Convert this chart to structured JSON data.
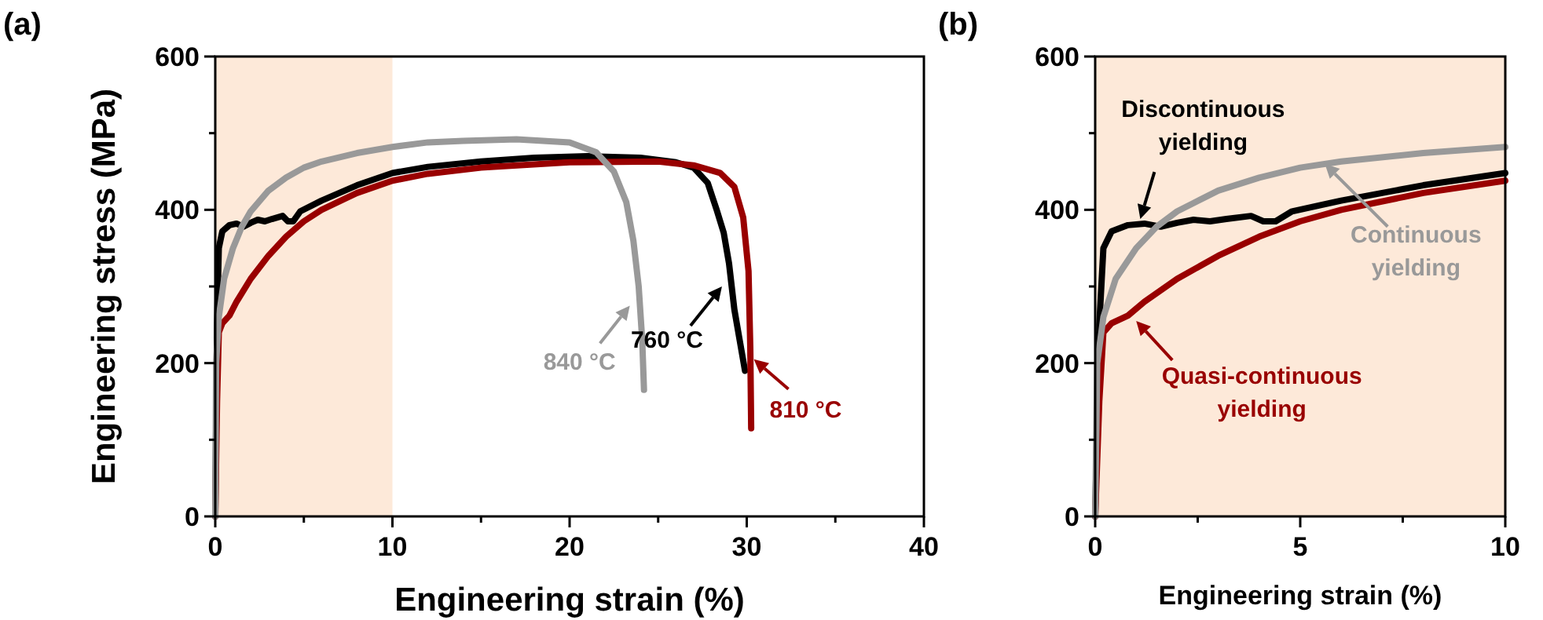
{
  "chart_data": [
    {
      "type": "line",
      "title": "(a)",
      "xlabel": "Engineering strain (%)",
      "ylabel": "Engineering stress (MPa)",
      "xlim": [
        0,
        40
      ],
      "ylim": [
        0,
        600
      ],
      "xticks": [
        0,
        {
          "value": 5,
          "label": null
        },
        10,
        {
          "value": 15,
          "label": null
        },
        20,
        {
          "value": 25,
          "label": null
        },
        30,
        {
          "value": 35,
          "label": null
        },
        40
      ],
      "yticks": [
        0,
        {
          "value": 100,
          "label": null
        },
        200,
        {
          "value": 300,
          "label": null
        },
        400,
        {
          "value": 500,
          "label": null
        },
        600
      ],
      "bands": [
        {
          "axis": "x",
          "from": 0,
          "to": 10,
          "color": "#fde9d9"
        }
      ],
      "grid": false,
      "marker": "none",
      "line_style": "solid",
      "series": [
        {
          "color": "#000000",
          "x": [
            0,
            0.1,
            0.2,
            0.4,
            0.8,
            1.2,
            1.6,
            2,
            2.4,
            2.8,
            3.2,
            3.8,
            4.1,
            4.4,
            4.8,
            6,
            8,
            10,
            12,
            15,
            18,
            21,
            24,
            26,
            27,
            27.8,
            28.3,
            28.7,
            29,
            29.3,
            29.6,
            29.9
          ],
          "values": [
            0,
            250,
            350,
            372,
            380,
            382,
            378,
            383,
            387,
            385,
            388,
            392,
            385,
            385,
            398,
            412,
            432,
            448,
            456,
            463,
            468,
            470,
            468,
            462,
            455,
            435,
            400,
            370,
            330,
            270,
            230,
            190
          ]
        },
        {
          "color": "#990000",
          "x": [
            0,
            0.1,
            0.2,
            0.4,
            0.8,
            1.2,
            2,
            3,
            4,
            5,
            6,
            8,
            10,
            12,
            15,
            20,
            25,
            27,
            28.5,
            29.3,
            29.8,
            30.1,
            30.2,
            30.25
          ],
          "values": [
            0,
            150,
            240,
            252,
            262,
            280,
            310,
            340,
            365,
            385,
            400,
            422,
            438,
            447,
            455,
            462,
            463,
            458,
            448,
            430,
            390,
            320,
            220,
            115
          ]
        },
        {
          "color": "#999999",
          "x": [
            0,
            0.05,
            0.2,
            0.5,
            1,
            1.5,
            2,
            3,
            4,
            5,
            6,
            8,
            10,
            12,
            14,
            17,
            20,
            21.5,
            22.5,
            23.2,
            23.6,
            23.9,
            24.1,
            24.2
          ],
          "values": [
            0,
            200,
            260,
            310,
            350,
            378,
            398,
            425,
            442,
            455,
            463,
            474,
            482,
            488,
            490,
            492,
            488,
            475,
            450,
            410,
            360,
            300,
            230,
            165
          ]
        }
      ],
      "annotations": [
        {
          "text": "760 °C",
          "x": 28.6,
          "y": 300
        },
        {
          "text": "810 °C",
          "x": 30.4,
          "y": 205
        },
        {
          "text": "840 °C",
          "x": 23.4,
          "y": 275
        }
      ]
    },
    {
      "type": "line",
      "title": "(b)",
      "xlabel": "Engineering strain (%)",
      "xlim": [
        0,
        10
      ],
      "ylim": [
        0,
        600
      ],
      "xticks": [
        0,
        {
          "value": 2.5,
          "label": null
        },
        5,
        {
          "value": 7.5,
          "label": null
        },
        10
      ],
      "yticks": [
        0,
        {
          "value": 100,
          "label": null
        },
        200,
        {
          "value": 300,
          "label": null
        },
        400,
        {
          "value": 500,
          "label": null
        },
        600
      ],
      "bands": [
        {
          "axis": "x",
          "from": 0,
          "to": 10,
          "color": "#fde9d9"
        }
      ],
      "grid": false,
      "marker": "none",
      "line_style": "solid",
      "series": [
        {
          "color": "#000000",
          "x": [
            0,
            0.1,
            0.2,
            0.4,
            0.8,
            1.2,
            1.6,
            2,
            2.4,
            2.8,
            3.2,
            3.8,
            4.1,
            4.4,
            4.8,
            6,
            8,
            10
          ],
          "values": [
            0,
            250,
            350,
            372,
            380,
            382,
            378,
            383,
            387,
            385,
            388,
            392,
            385,
            385,
            398,
            412,
            432,
            448
          ]
        },
        {
          "color": "#990000",
          "x": [
            0,
            0.1,
            0.2,
            0.4,
            0.8,
            1.2,
            2,
            3,
            4,
            5,
            6,
            8,
            10
          ],
          "values": [
            0,
            150,
            240,
            252,
            262,
            280,
            310,
            340,
            365,
            385,
            400,
            422,
            438
          ]
        },
        {
          "color": "#999999",
          "x": [
            0,
            0.05,
            0.2,
            0.5,
            1,
            1.5,
            2,
            3,
            4,
            5,
            6,
            8,
            10
          ],
          "values": [
            0,
            200,
            260,
            310,
            350,
            378,
            398,
            425,
            442,
            455,
            463,
            474,
            482
          ]
        }
      ],
      "annotations": [
        {
          "text": "Discontinuous\nyielding",
          "x": 1.1,
          "y": 388
        },
        {
          "text": "Quasi-continuous\nyielding",
          "x": 1,
          "y": 255
        },
        {
          "text": "Continuous\nyielding",
          "x": 5.6,
          "y": 460
        }
      ]
    }
  ]
}
